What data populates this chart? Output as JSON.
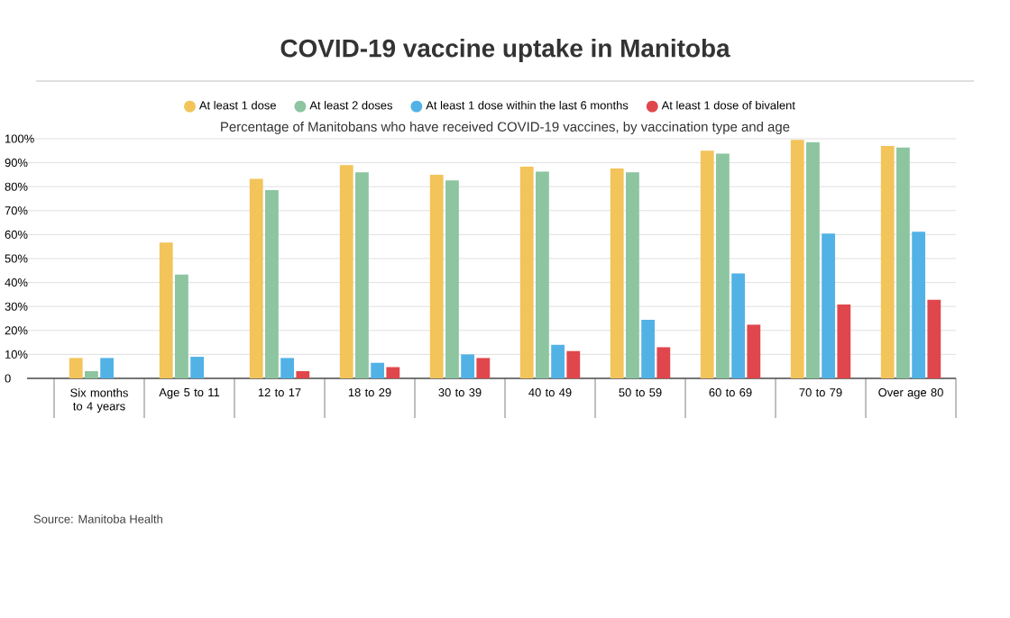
{
  "chart_data": {
    "type": "bar",
    "title": "COVID-19 vaccine uptake in Manitoba",
    "subtitle": "Percentage of Manitobans who have received COVID-19 vaccines, by vaccination type and age",
    "categories": [
      "Six months to 4 years",
      "Age 5 to 11",
      "12 to 17",
      "18 to 29",
      "30 to 39",
      "40 to 49",
      "50 to 59",
      "60 to 69",
      "70 to 79",
      "Over age 80"
    ],
    "series": [
      {
        "name": "At least 1 dose",
        "color": "#f2c45a",
        "values": [
          8.5,
          56.7,
          83.3,
          89,
          85,
          88.3,
          87.6,
          95,
          99.5,
          97
        ]
      },
      {
        "name": "At least 2 doses",
        "color": "#8cc5a0",
        "values": [
          3,
          43.3,
          78.6,
          86,
          82.6,
          86.3,
          86,
          93.8,
          98.5,
          96.3
        ]
      },
      {
        "name": "At least 1 dose within the last 6 months",
        "color": "#52b2e6",
        "values": [
          8.5,
          9,
          8.5,
          6.5,
          10,
          14,
          24.4,
          43.8,
          60.4,
          61.2
        ]
      },
      {
        "name": "At least 1 dose of bivalent",
        "color": "#e0474c",
        "values": [
          null,
          null,
          3,
          4.7,
          8.5,
          11.4,
          13,
          22.4,
          30.8,
          32.8
        ]
      }
    ],
    "ylim": [
      0,
      100
    ],
    "yticks": [
      0,
      {
        "value": 10,
        "label": "10%"
      },
      {
        "value": 20,
        "label": "20%"
      },
      {
        "value": 30,
        "label": "30%"
      },
      {
        "value": 40,
        "label": "40%"
      },
      {
        "value": 50,
        "label": "50%"
      },
      {
        "value": 60,
        "label": "60%"
      },
      {
        "value": 70,
        "label": "70%"
      },
      {
        "value": 80,
        "label": "80%"
      },
      {
        "value": 90,
        "label": "90%"
      },
      {
        "value": 100,
        "label": "100%"
      }
    ],
    "grid": "y",
    "legend": "top",
    "annotations": [
      "Source: Manitoba Health"
    ]
  }
}
